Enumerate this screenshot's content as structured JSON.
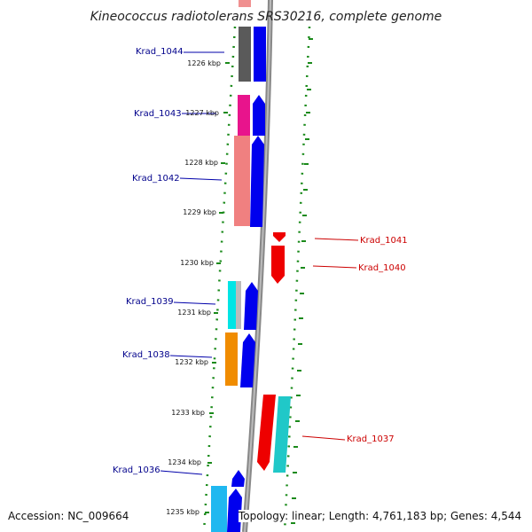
{
  "title": "Kineococcus radiotolerans SRS30216, complete genome",
  "ticks": [
    {
      "label": "1226 kbp"
    },
    {
      "label": "1227 kbp"
    },
    {
      "label": "1228 kbp"
    },
    {
      "label": "1229 kbp"
    },
    {
      "label": "1230 kbp"
    },
    {
      "label": "1231 kbp"
    },
    {
      "label": "1232 kbp"
    },
    {
      "label": "1233 kbp"
    },
    {
      "label": "1234 kbp"
    },
    {
      "label": "1235 kbp"
    }
  ],
  "genes": [
    {
      "name": "Krad_1044",
      "strand": "forward",
      "color": "#00008b"
    },
    {
      "name": "Krad_1043",
      "strand": "forward",
      "color": "#00008b"
    },
    {
      "name": "Krad_1042",
      "strand": "forward",
      "color": "#00008b"
    },
    {
      "name": "Krad_1041",
      "strand": "reverse",
      "color": "#cc0000"
    },
    {
      "name": "Krad_1040",
      "strand": "reverse",
      "color": "#cc0000"
    },
    {
      "name": "Krad_1039",
      "strand": "forward",
      "color": "#00008b"
    },
    {
      "name": "Krad_1038",
      "strand": "forward",
      "color": "#00008b"
    },
    {
      "name": "Krad_1037",
      "strand": "reverse",
      "color": "#cc0000"
    },
    {
      "name": "Krad_1036",
      "strand": "forward",
      "color": "#00008b"
    }
  ],
  "footer": {
    "accession": "Accession: NC_009664",
    "summary": "Topology: linear; Length: 4,761,183 bp; Genes: 4,544"
  },
  "colors": {
    "forward_arrow": "#0000ee",
    "reverse_arrow": "#ee0000",
    "backbone": "#888888",
    "grid": "#1a8a1a"
  }
}
